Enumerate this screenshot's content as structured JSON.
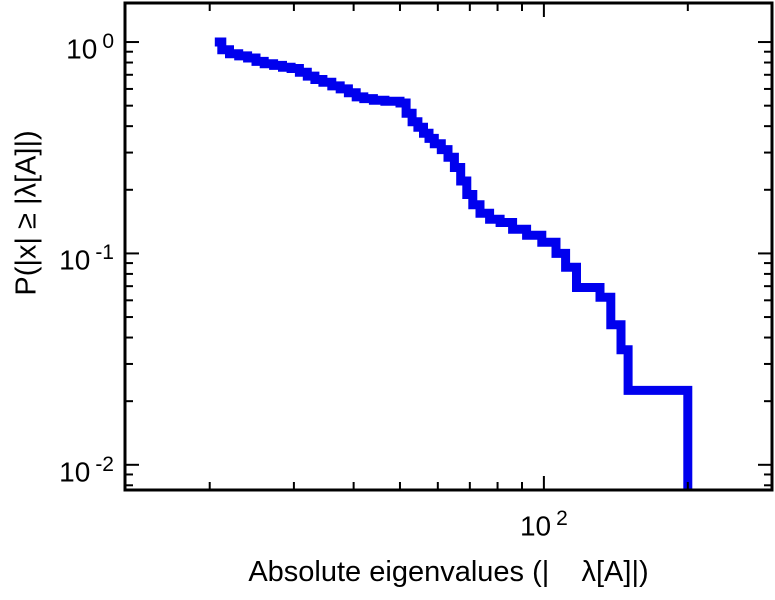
{
  "figure": {
    "background": "#ffffff",
    "axis_color": "#000000"
  },
  "chart_data": {
    "type": "line",
    "subtype": "step-ccdf",
    "title": "",
    "xlabel": "Absolute eigenvalues (|    λ[A]|)",
    "ylabel": "P(|x| ≥ |λ[A]|)",
    "x_scale": "log",
    "y_scale": "log",
    "xlim": [
      13.3,
      300
    ],
    "ylim": [
      0.0076,
      1.53
    ],
    "grid": false,
    "legend": false,
    "line_color": "#0000ee",
    "line_width": 9,
    "x_ticks": [
      {
        "value": 100,
        "base": "10",
        "exp": "2"
      }
    ],
    "y_ticks": [
      {
        "value": 1,
        "base": "10",
        "exp": "0"
      },
      {
        "value": 0.1,
        "base": "10",
        "exp": "-1"
      },
      {
        "value": 0.01,
        "base": "10",
        "exp": "-2"
      }
    ],
    "points": [
      [
        20.5,
        1.0
      ],
      [
        21.2,
        0.92
      ],
      [
        22.0,
        0.88
      ],
      [
        23.0,
        0.86
      ],
      [
        24.0,
        0.84
      ],
      [
        25.0,
        0.81
      ],
      [
        26.0,
        0.79
      ],
      [
        27.2,
        0.775
      ],
      [
        28.4,
        0.76
      ],
      [
        29.6,
        0.75
      ],
      [
        30.8,
        0.72
      ],
      [
        32.0,
        0.69
      ],
      [
        33.2,
        0.665
      ],
      [
        34.5,
        0.645
      ],
      [
        36.0,
        0.62
      ],
      [
        37.5,
        0.6
      ],
      [
        39.0,
        0.575
      ],
      [
        40.5,
        0.55
      ],
      [
        42.0,
        0.54
      ],
      [
        44.0,
        0.53
      ],
      [
        46.5,
        0.525
      ],
      [
        50.0,
        0.515
      ],
      [
        51.5,
        0.46
      ],
      [
        53.0,
        0.42
      ],
      [
        54.5,
        0.395
      ],
      [
        56.0,
        0.37
      ],
      [
        57.5,
        0.35
      ],
      [
        59.0,
        0.33
      ],
      [
        61.0,
        0.31
      ],
      [
        63.0,
        0.285
      ],
      [
        65.0,
        0.255
      ],
      [
        67.0,
        0.22
      ],
      [
        69.0,
        0.19
      ],
      [
        71.0,
        0.17
      ],
      [
        73.5,
        0.155
      ],
      [
        77.0,
        0.145
      ],
      [
        81.0,
        0.14
      ],
      [
        86.0,
        0.13
      ],
      [
        92.0,
        0.122
      ],
      [
        99.0,
        0.113
      ],
      [
        106.0,
        0.1
      ],
      [
        111.0,
        0.086
      ],
      [
        117.0,
        0.069
      ],
      [
        131.0,
        0.062
      ],
      [
        138.0,
        0.046
      ],
      [
        145.0,
        0.035
      ],
      [
        150.0,
        0.0225
      ],
      [
        200.0,
        0.0065
      ]
    ]
  }
}
